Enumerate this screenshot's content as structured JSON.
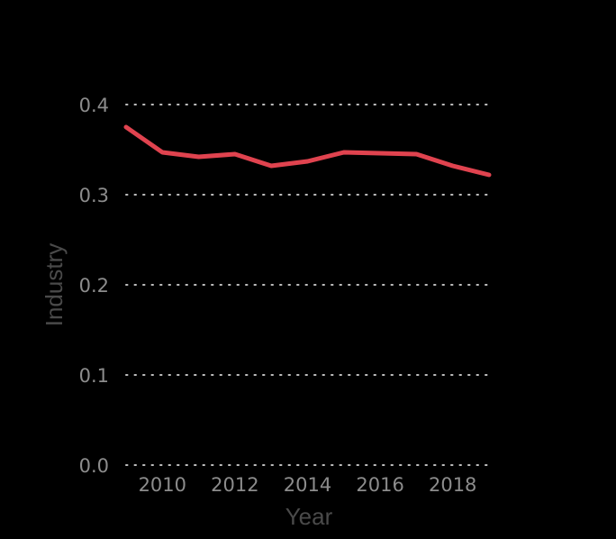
{
  "chart_data": {
    "type": "line",
    "title": "",
    "xlabel": "Year",
    "ylabel": "Industry",
    "x": [
      2009,
      2010,
      2011,
      2012,
      2013,
      2014,
      2015,
      2016,
      2017,
      2018,
      2019
    ],
    "series": [
      {
        "values": [
          0.375,
          0.347,
          0.342,
          0.345,
          0.332,
          0.337,
          0.347,
          0.346,
          0.345,
          0.332,
          0.322
        ],
        "color": "#e0434f"
      }
    ],
    "xlim": [
      2009,
      2019
    ],
    "ylim": [
      0,
      0.4
    ],
    "x_ticks": [
      "2010",
      "2012",
      "2014",
      "2016",
      "2018"
    ],
    "y_ticks": [
      "0.0",
      "0.1",
      "0.2",
      "0.3",
      "0.4"
    ],
    "grid": "horizontal dotted",
    "legend": "none"
  }
}
